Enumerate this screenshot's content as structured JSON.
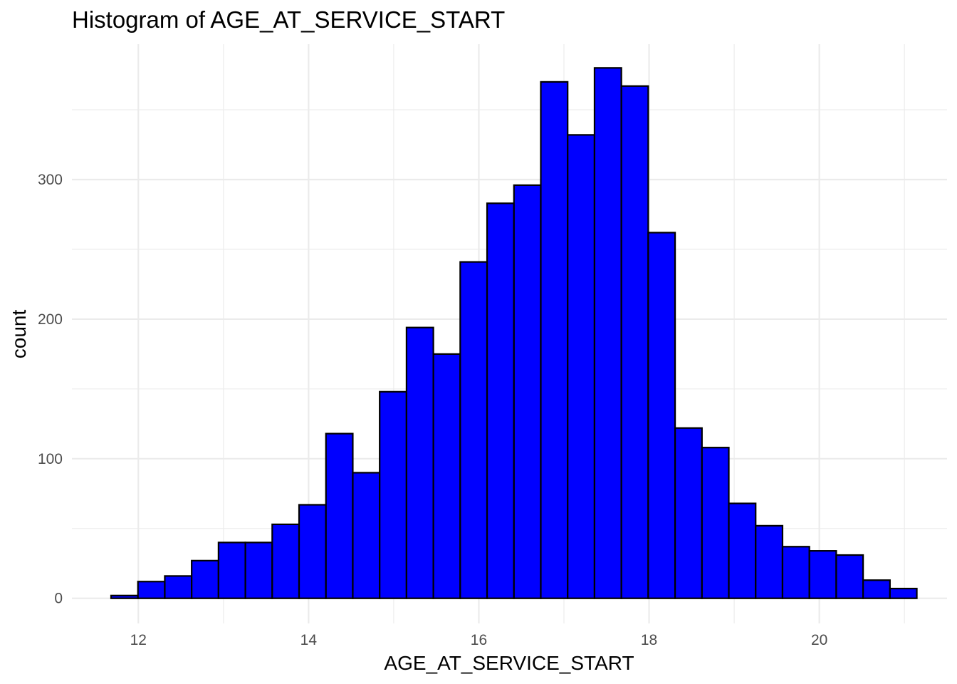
{
  "chart_data": {
    "type": "histogram",
    "title": "Histogram of AGE_AT_SERVICE_START",
    "xlabel": "AGE_AT_SERVICE_START",
    "ylabel": "count",
    "bin_start": 11.68,
    "bin_width": 0.3155,
    "x_ticks": [
      12,
      14,
      16,
      18,
      20
    ],
    "y_ticks": [
      0,
      100,
      200,
      300
    ],
    "xlim": [
      11.22,
      21.5
    ],
    "ylim": [
      -18,
      397
    ],
    "grid": true,
    "bar_fill": "#0000ff",
    "bar_outline": "#000000",
    "values": [
      2,
      12,
      16,
      27,
      40,
      40,
      53,
      67,
      118,
      90,
      148,
      194,
      175,
      241,
      283,
      296,
      370,
      332,
      380,
      367,
      262,
      122,
      108,
      68,
      52,
      37,
      34,
      31,
      13,
      7
    ]
  }
}
